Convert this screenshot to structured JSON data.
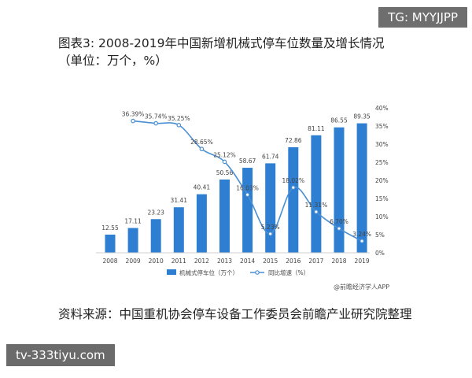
{
  "watermark_tag": "TG: MYYJJPP",
  "title": {
    "line1": "图表3: 2008-2019年中国新增机械式停车位数量及增长情况",
    "line2": "（单位：万个，%）"
  },
  "source": "资料来源：中国重机协会停车设备工作委员会前瞻产业研究院整理",
  "site_badge": "tv-333tiyu.com",
  "chart_data": {
    "type": "bar",
    "categories": [
      "2008",
      "2009",
      "2010",
      "2011",
      "2012",
      "2013",
      "2014",
      "2015",
      "2016",
      "2017",
      "2018",
      "2019"
    ],
    "series": [
      {
        "name": "机械式停车位（万个）",
        "type": "bar",
        "axis": "left",
        "values": [
          12.55,
          17.11,
          23.23,
          31.41,
          40.41,
          50.56,
          58.67,
          61.74,
          72.86,
          81.11,
          86.55,
          89.35
        ],
        "labels": [
          "12.55",
          "17.11",
          "23.23",
          "31.41",
          "40.41",
          "50.56",
          "58.67",
          "61.74",
          "72.86",
          "81.11",
          "86.55",
          "89.35"
        ]
      },
      {
        "name": "同比增速（%）",
        "type": "line",
        "axis": "right",
        "values": [
          null,
          36.39,
          35.74,
          35.25,
          28.65,
          25.12,
          16.03,
          5.23,
          18.02,
          11.31,
          6.7,
          3.24
        ],
        "labels": [
          "",
          "36.39%",
          "35.74%",
          "35.25%",
          "28.65%",
          "25.12%",
          "16.03%",
          "5.23%",
          "18.02%",
          "11.31%",
          "6.70%",
          "3.24%"
        ]
      }
    ],
    "y_right_ticks": [
      "0%",
      "5%",
      "10%",
      "15%",
      "20%",
      "25%",
      "30%",
      "35%",
      "40%"
    ],
    "ylim_left": [
      0,
      100
    ],
    "ylim_right": [
      0,
      40
    ],
    "legend_position": "bottom",
    "grid": false,
    "credit": "@前瞻经济学人APP",
    "colors": {
      "bar": "#2e7fd1",
      "line": "#4a8fd2",
      "text": "#444444"
    }
  }
}
